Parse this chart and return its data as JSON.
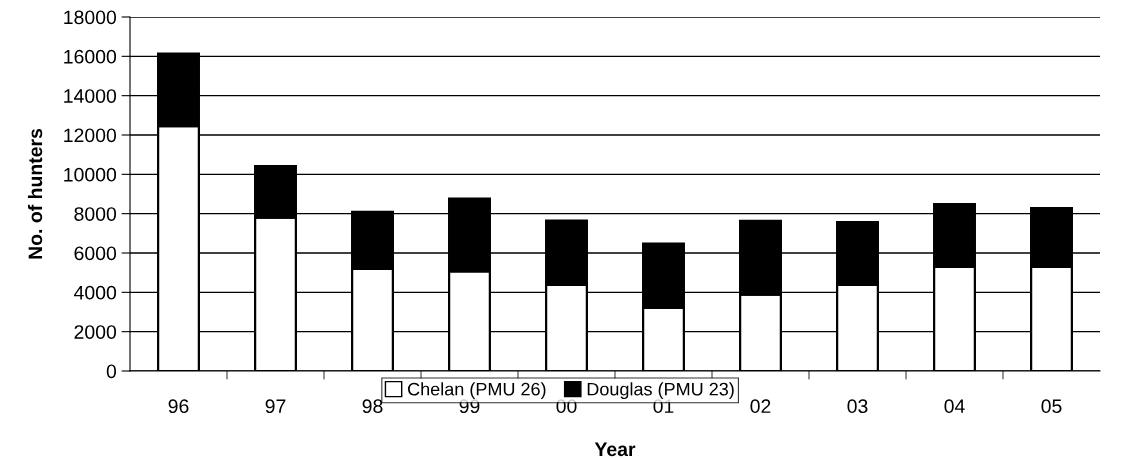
{
  "chart_data": {
    "type": "bar",
    "stacked": true,
    "xlabel": "Year",
    "ylabel": "No. of hunters",
    "categories": [
      "96",
      "97",
      "98",
      "99",
      "00",
      "01",
      "02",
      "03",
      "04",
      "05"
    ],
    "series": [
      {
        "name": "Chelan (PMU 26)",
        "color": "#ffffff",
        "values": [
          12450,
          7800,
          5190,
          5060,
          4380,
          3210,
          3880,
          4380,
          5300,
          5300
        ]
      },
      {
        "name": "Douglas (PMU 23)",
        "color": "#000000",
        "values": [
          3690,
          2620,
          2900,
          3700,
          3270,
          3270,
          3750,
          3190,
          3190,
          2980
        ]
      }
    ],
    "ylim": [
      0,
      18000
    ],
    "yticks": [
      0,
      2000,
      4000,
      6000,
      8000,
      10000,
      12000,
      14000,
      16000,
      18000
    ],
    "grid": "y",
    "legend": "bottom"
  }
}
